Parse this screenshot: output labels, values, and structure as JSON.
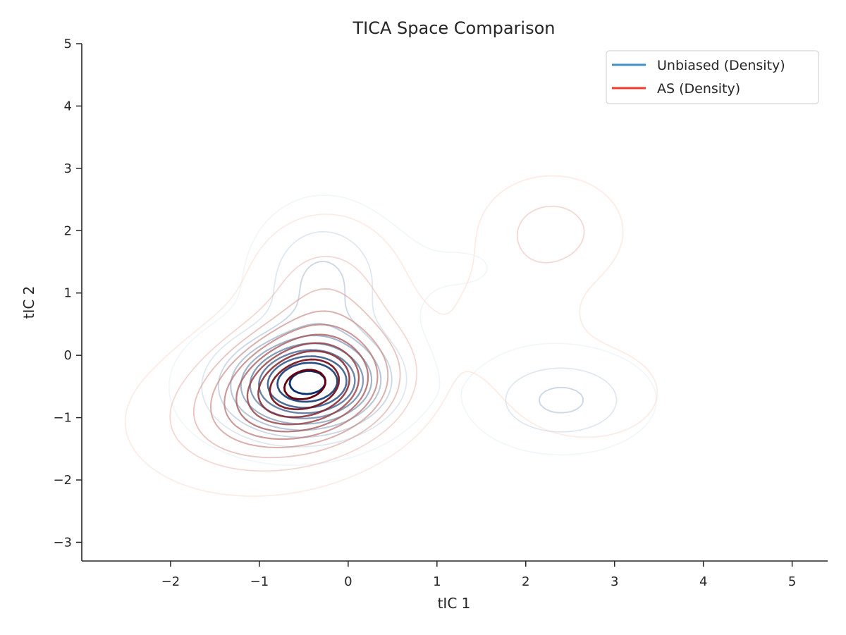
{
  "chart_data": {
    "type": "contour",
    "title": "TICA Space Comparison",
    "xlabel": "tIC 1",
    "ylabel": "tIC 2",
    "xlim": [
      -3.0,
      5.4
    ],
    "ylim": [
      -3.3,
      5.0
    ],
    "xticks": [
      -2,
      -1,
      0,
      1,
      2,
      3,
      4,
      5
    ],
    "yticks": [
      -3,
      -2,
      -1,
      0,
      1,
      2,
      3,
      4,
      5
    ],
    "xtick_labels": [
      "−2",
      "−1",
      "0",
      "1",
      "2",
      "3",
      "4",
      "5"
    ],
    "ytick_labels": [
      "−3",
      "−2",
      "−1",
      "0",
      "1",
      "2",
      "3",
      "4",
      "5"
    ],
    "grid": false,
    "legend_position": "top-right",
    "legend": [
      {
        "label": "Unbiased (Density)",
        "color": "#4292c6"
      },
      {
        "label": "AS (Density)",
        "color": "#ef3b2c"
      }
    ],
    "series": [
      {
        "name": "Unbiased (Density)",
        "colormap": "Blues",
        "color_light": "#deebf7",
        "color_dark": "#08306b",
        "levels": 10,
        "components": [
          {
            "weight": 0.52,
            "mean": [
              -0.42,
              -0.45
            ],
            "std": [
              0.55,
              0.5
            ],
            "corr": 0.05
          },
          {
            "weight": 0.18,
            "mean": [
              -0.3,
              1.15
            ],
            "std": [
              0.45,
              0.72
            ],
            "corr": 0.0
          },
          {
            "weight": 0.1,
            "mean": [
              -0.95,
              -0.5
            ],
            "std": [
              0.6,
              0.6
            ],
            "corr": 0.0
          },
          {
            "weight": 0.14,
            "mean": [
              2.4,
              -0.72
            ],
            "std": [
              0.55,
              0.45
            ],
            "corr": 0.0
          },
          {
            "weight": 0.06,
            "mean": [
              1.3,
              1.4
            ],
            "std": [
              0.9,
              0.75
            ],
            "corr": 0.0
          }
        ]
      },
      {
        "name": "AS (Density)",
        "colormap": "Reds",
        "color_light": "#fdd0c2",
        "color_dark": "#67000d",
        "levels": 10,
        "components": [
          {
            "weight": 0.55,
            "mean": [
              -0.45,
              -0.45
            ],
            "std": [
              0.62,
              0.6
            ],
            "corr": 0.1
          },
          {
            "weight": 0.13,
            "mean": [
              -0.25,
              0.9
            ],
            "std": [
              0.5,
              0.75
            ],
            "corr": 0.0
          },
          {
            "weight": 0.15,
            "mean": [
              -1.2,
              -1.1
            ],
            "std": [
              0.7,
              0.6
            ],
            "corr": 0.0
          },
          {
            "weight": 0.07,
            "mean": [
              2.3,
              2.0
            ],
            "std": [
              0.45,
              0.5
            ],
            "corr": 0.0
          },
          {
            "weight": 0.05,
            "mean": [
              1.9,
              0.6
            ],
            "std": [
              0.5,
              0.7
            ],
            "corr": 0.0
          },
          {
            "weight": 0.05,
            "mean": [
              2.7,
              -0.6
            ],
            "std": [
              0.55,
              0.5
            ],
            "corr": 0.0
          }
        ]
      }
    ]
  }
}
